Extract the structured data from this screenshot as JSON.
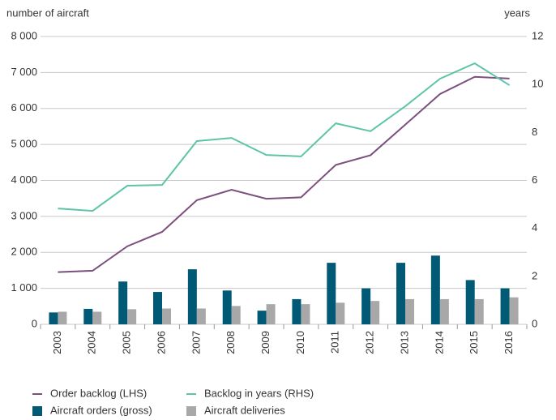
{
  "chart_data": {
    "type": "bar-line",
    "y_label": "number of aircraft",
    "y2_label": "years",
    "categories": [
      "2003",
      "2004",
      "2005",
      "2006",
      "2007",
      "2008",
      "2009",
      "2010",
      "2011",
      "2012",
      "2013",
      "2014",
      "2015",
      "2016"
    ],
    "series": [
      {
        "name": "Aircraft orders (gross)",
        "type": "bar",
        "color": "#005a75",
        "values": [
          330,
          430,
          1190,
          900,
          1530,
          940,
          380,
          700,
          1710,
          1000,
          1710,
          1910,
          1230,
          1000
        ]
      },
      {
        "name": "Aircraft deliveries",
        "type": "bar",
        "color": "#a8a8a8",
        "values": [
          350,
          350,
          420,
          440,
          440,
          510,
          560,
          560,
          600,
          650,
          700,
          700,
          700,
          750
        ]
      },
      {
        "name": "Order backlog (LHS)",
        "type": "line",
        "color": "#7b4f7e",
        "values": [
          1450,
          1490,
          2170,
          2570,
          3450,
          3740,
          3490,
          3530,
          4430,
          4700,
          5550,
          6400,
          6880,
          6830
        ]
      },
      {
        "name": "Backlog in years (RHS)",
        "type": "line",
        "axis": "y2",
        "color": "#5ec4a8",
        "values": [
          4.83,
          4.73,
          5.78,
          5.81,
          7.64,
          7.77,
          7.06,
          7.0,
          8.38,
          8.05,
          9.09,
          10.24,
          10.88,
          9.97
        ]
      }
    ],
    "ylim": [
      0,
      8000
    ],
    "yticks": [
      0,
      {
        "value": 1000,
        "label": "1 000"
      },
      {
        "value": 2000,
        "label": "2 000"
      },
      {
        "value": 3000,
        "label": "3 000"
      },
      {
        "value": 4000,
        "label": "4 000"
      },
      {
        "value": 5000,
        "label": "5 000"
      },
      {
        "value": 6000,
        "label": "6 000"
      },
      {
        "value": 7000,
        "label": "7 000"
      },
      {
        "value": 8000,
        "label": "8 000"
      }
    ],
    "y2lim": [
      0,
      12
    ],
    "y2ticks": [
      0,
      2,
      4,
      6,
      8,
      10,
      12
    ],
    "grid": true
  }
}
